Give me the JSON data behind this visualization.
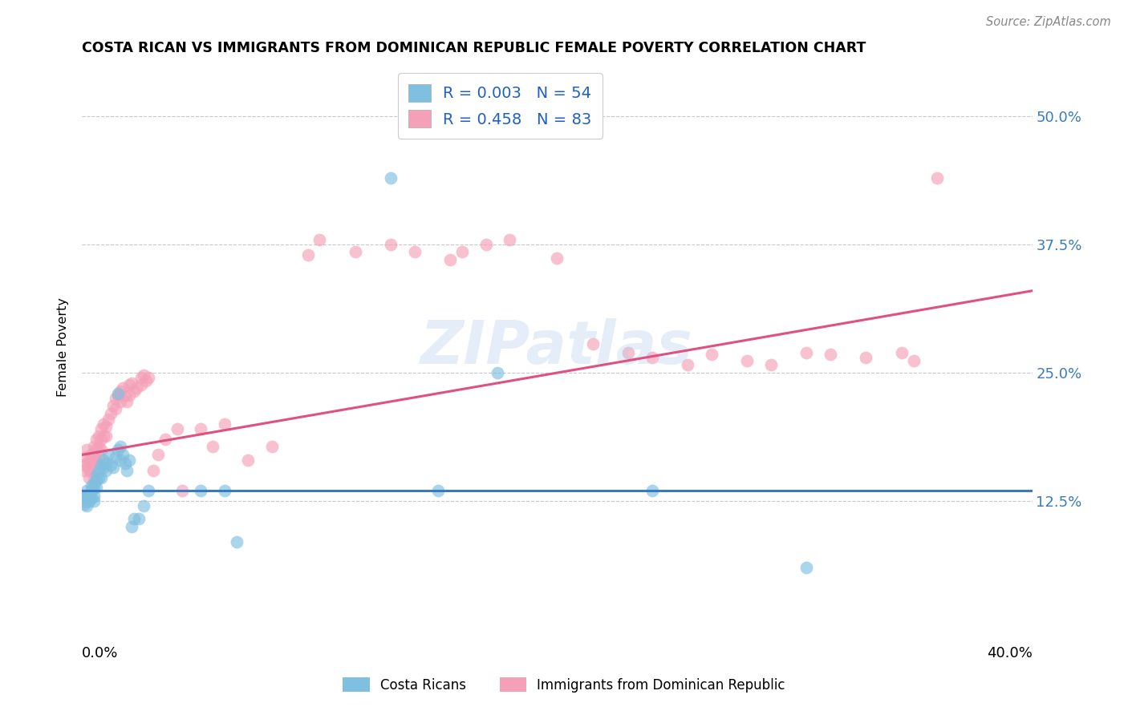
{
  "title": "COSTA RICAN VS IMMIGRANTS FROM DOMINICAN REPUBLIC FEMALE POVERTY CORRELATION CHART",
  "source": "Source: ZipAtlas.com",
  "ylabel": "Female Poverty",
  "xlim": [
    0.0,
    0.4
  ],
  "ylim": [
    0.0,
    0.55
  ],
  "x_ticks": [
    0.0,
    0.05,
    0.1,
    0.15,
    0.2,
    0.25,
    0.3,
    0.35,
    0.4
  ],
  "y_ticks": [
    0.0,
    0.125,
    0.25,
    0.375,
    0.5
  ],
  "y_tick_labels": [
    "",
    "12.5%",
    "25.0%",
    "37.5%",
    "50.0%"
  ],
  "watermark": "ZIPatlas",
  "legend_blue_label": "Costa Ricans",
  "legend_pink_label": "Immigrants from Dominican Republic",
  "blue_R": "0.003",
  "blue_N": "54",
  "pink_R": "0.458",
  "pink_N": "83",
  "blue_color": "#7fbfdf",
  "blue_line_color": "#3a7bbf",
  "pink_color": "#f4a0b8",
  "pink_line_color": "#e05080",
  "background_color": "#ffffff",
  "grid_color": "#c8c8c8",
  "blue_line_y0": 0.135,
  "blue_line_y1": 0.135,
  "pink_line_y0": 0.17,
  "pink_line_y1": 0.33,
  "blue_scatter_x": [
    0.001,
    0.001,
    0.001,
    0.001,
    0.002,
    0.002,
    0.002,
    0.002,
    0.003,
    0.003,
    0.003,
    0.004,
    0.004,
    0.004,
    0.005,
    0.005,
    0.005,
    0.005,
    0.006,
    0.006,
    0.006,
    0.007,
    0.007,
    0.008,
    0.008,
    0.009,
    0.009,
    0.01,
    0.01,
    0.011,
    0.012,
    0.013,
    0.014,
    0.015,
    0.015,
    0.016,
    0.016,
    0.017,
    0.018,
    0.019,
    0.02,
    0.021,
    0.022,
    0.024,
    0.026,
    0.028,
    0.05,
    0.06,
    0.065,
    0.13,
    0.15,
    0.175,
    0.24,
    0.305
  ],
  "blue_scatter_y": [
    0.13,
    0.128,
    0.125,
    0.122,
    0.135,
    0.13,
    0.128,
    0.12,
    0.132,
    0.128,
    0.125,
    0.14,
    0.135,
    0.128,
    0.142,
    0.138,
    0.13,
    0.125,
    0.15,
    0.145,
    0.138,
    0.155,
    0.148,
    0.16,
    0.148,
    0.165,
    0.158,
    0.162,
    0.155,
    0.17,
    0.16,
    0.158,
    0.168,
    0.175,
    0.23,
    0.165,
    0.178,
    0.17,
    0.162,
    0.155,
    0.165,
    0.1,
    0.108,
    0.108,
    0.12,
    0.135,
    0.135,
    0.135,
    0.085,
    0.44,
    0.135,
    0.25,
    0.135,
    0.06
  ],
  "pink_scatter_x": [
    0.001,
    0.001,
    0.002,
    0.002,
    0.002,
    0.003,
    0.003,
    0.003,
    0.003,
    0.004,
    0.004,
    0.004,
    0.005,
    0.005,
    0.005,
    0.005,
    0.006,
    0.006,
    0.006,
    0.007,
    0.007,
    0.007,
    0.008,
    0.008,
    0.008,
    0.009,
    0.009,
    0.01,
    0.01,
    0.011,
    0.012,
    0.013,
    0.014,
    0.014,
    0.015,
    0.016,
    0.016,
    0.017,
    0.018,
    0.019,
    0.02,
    0.02,
    0.021,
    0.022,
    0.023,
    0.025,
    0.025,
    0.026,
    0.027,
    0.028,
    0.03,
    0.032,
    0.035,
    0.04,
    0.042,
    0.05,
    0.055,
    0.06,
    0.07,
    0.08,
    0.095,
    0.1,
    0.115,
    0.13,
    0.14,
    0.155,
    0.16,
    0.17,
    0.18,
    0.2,
    0.215,
    0.23,
    0.24,
    0.255,
    0.265,
    0.28,
    0.29,
    0.305,
    0.315,
    0.33,
    0.345,
    0.35,
    0.36
  ],
  "pink_scatter_y": [
    0.16,
    0.155,
    0.175,
    0.168,
    0.162,
    0.158,
    0.165,
    0.155,
    0.148,
    0.17,
    0.162,
    0.155,
    0.178,
    0.168,
    0.16,
    0.148,
    0.185,
    0.175,
    0.165,
    0.188,
    0.178,
    0.168,
    0.195,
    0.185,
    0.175,
    0.2,
    0.188,
    0.198,
    0.188,
    0.205,
    0.21,
    0.218,
    0.225,
    0.215,
    0.228,
    0.232,
    0.222,
    0.235,
    0.228,
    0.222,
    0.238,
    0.228,
    0.24,
    0.232,
    0.235,
    0.245,
    0.238,
    0.248,
    0.242,
    0.245,
    0.155,
    0.17,
    0.185,
    0.195,
    0.135,
    0.195,
    0.178,
    0.2,
    0.165,
    0.178,
    0.365,
    0.38,
    0.368,
    0.375,
    0.368,
    0.36,
    0.368,
    0.375,
    0.38,
    0.362,
    0.278,
    0.27,
    0.265,
    0.258,
    0.268,
    0.262,
    0.258,
    0.27,
    0.268,
    0.265,
    0.27,
    0.262,
    0.44
  ]
}
